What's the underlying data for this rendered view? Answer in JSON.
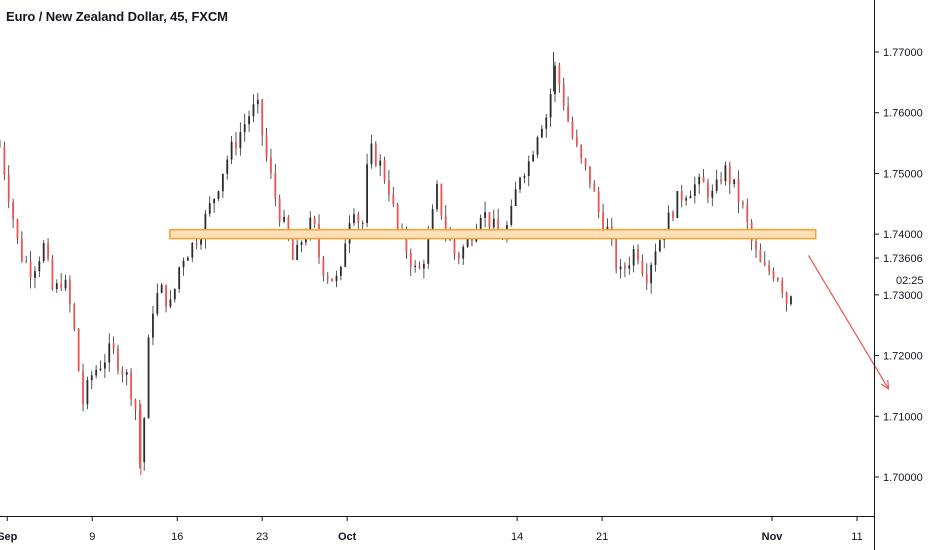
{
  "chart": {
    "title": "Euro / New Zealand Dollar, 45, FXCM",
    "price_label": "1.73606",
    "countdown_label": "02:25"
  },
  "chart_data": {
    "type": "candlestick",
    "title": "Euro / New Zealand Dollar, 45, FXCM",
    "ylim": [
      1.695,
      1.776
    ],
    "y_ticks": [
      1.7,
      1.71,
      1.72,
      1.73,
      1.74,
      1.75,
      1.76,
      1.77
    ],
    "y_tick_labels": [
      "1.70000",
      "1.71000",
      "1.72000",
      "1.73000",
      "1.74000",
      "1.75000",
      "1.76000",
      "1.77000"
    ],
    "x_ticks": [
      {
        "label": "Sep",
        "day": 2,
        "bold": true
      },
      {
        "label": "9",
        "day": 9,
        "bold": false
      },
      {
        "label": "16",
        "day": 16,
        "bold": false
      },
      {
        "label": "23",
        "day": 23,
        "bold": false
      },
      {
        "label": "Oct",
        "day": 30,
        "bold": true
      },
      {
        "label": "14",
        "day": 44,
        "bold": false
      },
      {
        "label": "21",
        "day": 51,
        "bold": false
      },
      {
        "label": "Nov",
        "day": 65,
        "bold": true
      },
      {
        "label": "11",
        "day": 72,
        "bold": false
      }
    ],
    "x_range_days": [
      1.4,
      73.4
    ],
    "last_price": 1.73606,
    "path_points": [
      [
        1.4,
        1.7545
      ],
      [
        2.0,
        1.748
      ],
      [
        3.0,
        1.737
      ],
      [
        4.0,
        1.734
      ],
      [
        5.0,
        1.738
      ],
      [
        5.8,
        1.73
      ],
      [
        6.6,
        1.733
      ],
      [
        7.4,
        1.726
      ],
      [
        8.2,
        1.712
      ],
      [
        9.0,
        1.717
      ],
      [
        9.8,
        1.719
      ],
      [
        10.6,
        1.721
      ],
      [
        11.4,
        1.718
      ],
      [
        12.0,
        1.716
      ],
      [
        12.6,
        1.711
      ],
      [
        13.0,
        1.7005
      ],
      [
        13.8,
        1.727
      ],
      [
        14.6,
        1.731
      ],
      [
        15.5,
        1.728
      ],
      [
        16.3,
        1.736
      ],
      [
        17.2,
        1.738
      ],
      [
        18.0,
        1.741
      ],
      [
        19.0,
        1.746
      ],
      [
        20.0,
        1.752
      ],
      [
        21.0,
        1.756
      ],
      [
        22.0,
        1.76
      ],
      [
        22.6,
        1.761
      ],
      [
        23.4,
        1.752
      ],
      [
        24.2,
        1.745
      ],
      [
        25.0,
        1.74
      ],
      [
        25.6,
        1.735
      ],
      [
        26.4,
        1.74
      ],
      [
        27.2,
        1.742
      ],
      [
        27.8,
        1.735
      ],
      [
        28.6,
        1.733
      ],
      [
        29.4,
        1.732
      ],
      [
        30.0,
        1.742
      ],
      [
        30.6,
        1.745
      ],
      [
        31.2,
        1.74
      ],
      [
        31.8,
        1.754
      ],
      [
        32.6,
        1.752
      ],
      [
        33.4,
        1.748
      ],
      [
        34.2,
        1.74
      ],
      [
        35.0,
        1.737
      ],
      [
        35.8,
        1.733
      ],
      [
        36.6,
        1.738
      ],
      [
        37.4,
        1.747
      ],
      [
        38.2,
        1.74
      ],
      [
        39.0,
        1.736
      ],
      [
        40.0,
        1.739
      ],
      [
        41.0,
        1.744
      ],
      [
        41.8,
        1.742
      ],
      [
        42.6,
        1.739
      ],
      [
        43.4,
        1.742
      ],
      [
        44.2,
        1.75
      ],
      [
        45.0,
        1.752
      ],
      [
        45.8,
        1.758
      ],
      [
        46.6,
        1.76
      ],
      [
        47.0,
        1.768
      ],
      [
        47.6,
        1.764
      ],
      [
        48.4,
        1.757
      ],
      [
        49.2,
        1.752
      ],
      [
        50.0,
        1.749
      ],
      [
        50.8,
        1.743
      ],
      [
        51.6,
        1.74
      ],
      [
        52.4,
        1.733
      ],
      [
        53.0,
        1.735
      ],
      [
        53.8,
        1.738
      ],
      [
        54.6,
        1.733
      ],
      [
        55.4,
        1.738
      ],
      [
        56.2,
        1.741
      ],
      [
        57.0,
        1.745
      ],
      [
        57.8,
        1.747
      ],
      [
        58.6,
        1.748
      ],
      [
        59.4,
        1.748
      ],
      [
        60.2,
        1.746
      ],
      [
        61.0,
        1.751
      ],
      [
        61.8,
        1.748
      ],
      [
        62.6,
        1.744
      ],
      [
        63.4,
        1.738
      ],
      [
        64.2,
        1.734
      ],
      [
        65.0,
        1.734
      ],
      [
        65.6,
        1.733
      ],
      [
        66.2,
        1.729
      ],
      [
        66.6,
        1.731
      ]
    ],
    "horizontal_zone": {
      "from_day": 15.4,
      "to_day": 68.6,
      "low": 1.7396,
      "high": 1.7404,
      "color": "#f7a23a"
    },
    "projection_arrow": {
      "from": [
        68.0,
        1.7365
      ],
      "to": [
        74.6,
        1.7145
      ],
      "color": "#ef5350"
    },
    "colors": {
      "up": "#26a69a",
      "down": "#ef5350",
      "candle": "#2b2b2b",
      "axis": "#131722",
      "grid": "#e0e3eb"
    }
  }
}
